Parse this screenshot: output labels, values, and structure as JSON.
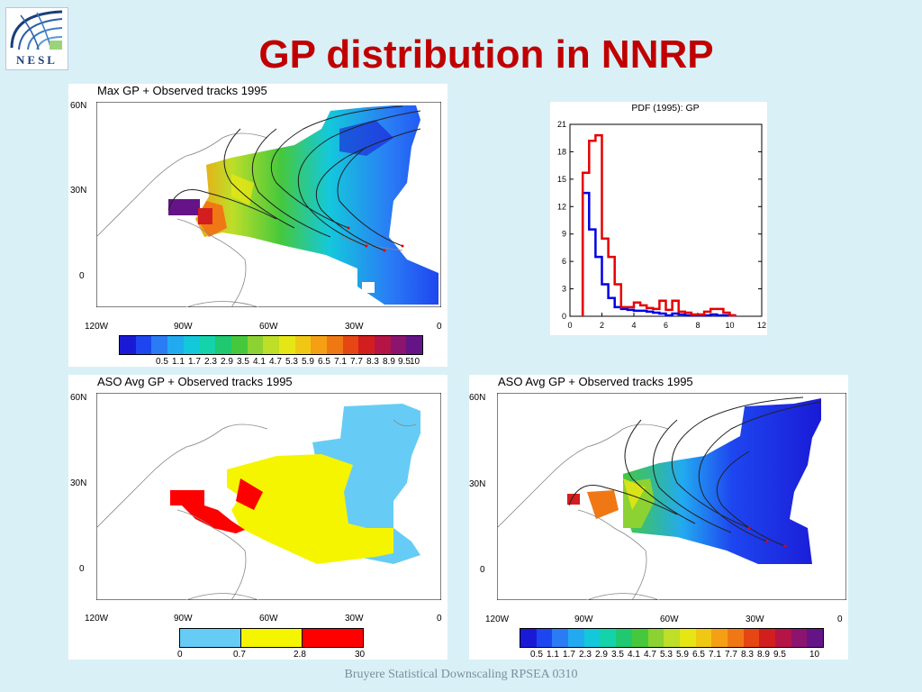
{
  "logo_text": "NESL",
  "title": "GP distribution in NNRP",
  "footer": "Bruyere Statistical Downscaling RPSEA 0310",
  "maps": {
    "map1": {
      "title": "Max GP + Observed tracks 1995",
      "lat_labels": [
        "60N",
        "30N",
        "0"
      ],
      "lon_labels": [
        "120W",
        "90W",
        "60W",
        "30W",
        "0"
      ],
      "colorbar": [
        "0.5",
        "1.1",
        "1.7",
        "2.3",
        "2.9",
        "3.5",
        "4.1",
        "4.7",
        "5.3",
        "5.9",
        "6.5",
        "7.1",
        "7.7",
        "8.3",
        "8.9",
        "9.5",
        "10"
      ]
    },
    "map2": {
      "title": "ASO Avg GP + Observed tracks 1995",
      "lat_labels": [
        "60N",
        "30N",
        "0"
      ],
      "lon_labels": [
        "120W",
        "90W",
        "60W",
        "30W",
        "0"
      ],
      "colorbar": [
        "0",
        "0.7",
        "2.8",
        "30"
      ]
    },
    "map3": {
      "title": "ASO Avg GP + Observed tracks 1995",
      "lat_labels": [
        "60N",
        "30N",
        "0"
      ],
      "lon_labels": [
        "120W",
        "90W",
        "60W",
        "30W",
        "0"
      ],
      "colorbar": [
        "0.5",
        "1.1",
        "1.7",
        "2.3",
        "2.9",
        "3.5",
        "4.1",
        "4.7",
        "5.3",
        "5.9",
        "6.5",
        "7.1",
        "7.7",
        "8.3",
        "8.9",
        "9.5",
        "10"
      ]
    }
  },
  "colors": {
    "rainbow": [
      "#1a1ad6",
      "#1e46f0",
      "#2a7cf5",
      "#22aaf0",
      "#14c8dc",
      "#14d2aa",
      "#20c870",
      "#46c83c",
      "#8cd232",
      "#bede28",
      "#e6e614",
      "#f0c814",
      "#f5a014",
      "#f07814",
      "#e64614",
      "#d21e1e",
      "#b41446",
      "#8c146e",
      "#641487"
    ],
    "three": [
      "#66ccf5",
      "#f5f500",
      "#ff0000"
    ],
    "pdf_blue": "#0000e6",
    "pdf_red": "#e60000",
    "title": "#c00000"
  },
  "chart_data": {
    "type": "line",
    "title": "PDF (1995): GP",
    "xlim": [
      0,
      12
    ],
    "ylim": [
      0,
      21
    ],
    "xticks": [
      0,
      2,
      4,
      6,
      8,
      10,
      12
    ],
    "yticks": [
      0,
      3,
      6,
      9,
      12,
      15,
      18,
      21
    ],
    "series": [
      {
        "color": "#0000e6",
        "step": "post",
        "x": [
          0.8,
          1.2,
          1.6,
          2.0,
          2.4,
          2.8,
          3.2,
          3.6,
          4.0,
          4.4,
          4.8,
          5.2,
          5.6,
          6.0,
          6.4,
          6.8,
          7.2,
          7.6,
          8.0,
          8.4,
          8.8,
          9.2,
          9.6,
          10.0
        ],
        "y": [
          13.5,
          9.5,
          6.5,
          3.5,
          2.0,
          1.0,
          0.8,
          0.7,
          0.6,
          0.6,
          0.5,
          0.4,
          0.3,
          0.1,
          0.3,
          0.2,
          0.1,
          0.1,
          0.1,
          0.1,
          0.2,
          0.1,
          0.1,
          0.1
        ]
      },
      {
        "color": "#e60000",
        "step": "post",
        "x": [
          0.8,
          1.2,
          1.6,
          2.0,
          2.4,
          2.8,
          3.2,
          3.6,
          4.0,
          4.4,
          4.8,
          5.2,
          5.6,
          6.0,
          6.4,
          6.8,
          7.2,
          7.6,
          8.0,
          8.4,
          8.8,
          9.2,
          9.6,
          10.0
        ],
        "y": [
          15.7,
          19.2,
          19.8,
          8.5,
          6.5,
          3.5,
          1.0,
          1.0,
          1.5,
          1.2,
          0.9,
          0.8,
          1.7,
          0.7,
          1.7,
          0.5,
          0.4,
          0.2,
          0.2,
          0.5,
          0.8,
          0.8,
          0.4,
          0.1
        ]
      }
    ]
  }
}
